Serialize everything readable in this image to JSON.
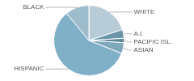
{
  "chart_data": {
    "type": "pie",
    "categories": [
      "WHITE",
      "A.I.",
      "PACIFIC ISL.",
      "ASIAN",
      "HISPANIC",
      "BLACK"
    ],
    "values": [
      20,
      4,
      2,
      5,
      58,
      11
    ],
    "colors": [
      "#b8ccd8",
      "#6a95aa",
      "#5a8598",
      "#80a8bc",
      "#80afc8",
      "#9dbdcc"
    ]
  }
}
